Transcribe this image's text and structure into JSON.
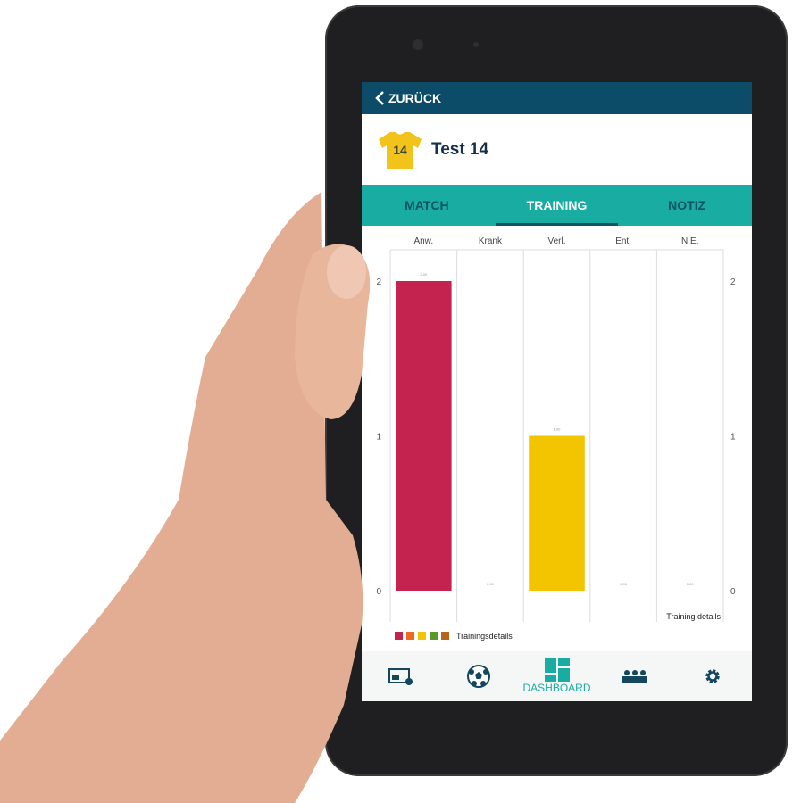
{
  "header": {
    "back_label": "ZURÜCK"
  },
  "player": {
    "number": "14",
    "name": "Test 14",
    "shirt_color": "#f2c31b"
  },
  "tabs": [
    {
      "label": "MATCH"
    },
    {
      "label": "TRAINING",
      "active": true
    },
    {
      "label": "NOTIZ"
    }
  ],
  "chart_data": {
    "type": "bar",
    "categories": [
      "Anw.",
      "Krank",
      "Verl.",
      "Ent.",
      "N.E."
    ],
    "values": [
      2,
      0,
      1,
      0,
      0
    ],
    "value_labels": [
      "2,00",
      "0,00",
      "1,00",
      "0,00",
      "0,00"
    ],
    "colors": [
      "#c5234f",
      "#ee6a1f",
      "#f2c500",
      "#5a9a2a",
      "#b5651d"
    ],
    "ylim": [
      0,
      2
    ],
    "yticks": [
      "0",
      "1",
      "2"
    ],
    "description_label": "Training details",
    "legend": {
      "label": "Trainingsdetails",
      "position": "bottom-left"
    },
    "grid": "vertical"
  },
  "nav": {
    "items": [
      {
        "icon": "news-icon"
      },
      {
        "icon": "football-icon"
      },
      {
        "icon": "dashboard-icon",
        "label": "DASHBOARD",
        "active": true
      },
      {
        "icon": "team-icon"
      },
      {
        "icon": "gear-icon"
      }
    ]
  },
  "colors": {
    "topbar": "#0c4c68",
    "accent": "#19aca3"
  }
}
